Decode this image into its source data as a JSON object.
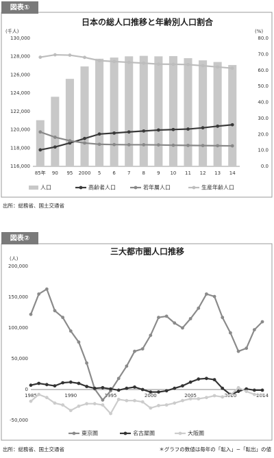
{
  "chart_data": [
    {
      "type": "bar",
      "label": "図表①",
      "title": "日本の総人口推移と年齢別人口割合",
      "y_unit": "(千人)",
      "y2_unit": "(%)",
      "categories": [
        "85年",
        "90",
        "95",
        "2000",
        "5",
        "6",
        "7",
        "8",
        "9",
        "10",
        "11",
        "12",
        "13",
        "14"
      ],
      "series": [
        {
          "name": "人口",
          "type": "bar",
          "color": "#c8c8c8",
          "values": [
            121049,
            123611,
            125570,
            126926,
            127768,
            127901,
            128033,
            128084,
            128032,
            128057,
            127834,
            127593,
            127414,
            127083
          ]
        },
        {
          "name": "高齢者人口",
          "type": "line",
          "axis": "y2",
          "color": "#3a3a3a",
          "values": [
            10.3,
            12.1,
            14.6,
            17.4,
            20.2,
            20.8,
            21.5,
            22.1,
            22.7,
            23.0,
            23.3,
            24.1,
            25.1,
            26.0
          ]
        },
        {
          "name": "若年層人口",
          "type": "line",
          "axis": "y2",
          "color": "#888888",
          "values": [
            21.5,
            18.2,
            16.0,
            14.6,
            13.8,
            13.6,
            13.5,
            13.5,
            13.4,
            13.2,
            13.1,
            13.0,
            12.9,
            12.8
          ]
        },
        {
          "name": "生産年齢人口",
          "type": "line",
          "axis": "y2",
          "color": "#bdbdbd",
          "values": [
            68.2,
            69.7,
            69.5,
            68.1,
            66.1,
            65.5,
            65.0,
            64.5,
            63.9,
            63.8,
            63.6,
            62.9,
            62.1,
            61.3
          ]
        }
      ],
      "ylim": [
        116000,
        130000
      ],
      "yticks": [
        {
          "value": 116000,
          "label": "116,000"
        },
        {
          "value": 118000,
          "label": "118,000"
        },
        {
          "value": 120000,
          "label": "120,000"
        },
        {
          "value": 122000,
          "label": "122,000"
        },
        {
          "value": 124000,
          "label": "124,000"
        },
        {
          "value": 126000,
          "label": "126,000"
        },
        {
          "value": 128000,
          "label": "128,000"
        },
        {
          "value": 130000,
          "label": "130,000"
        }
      ],
      "y2lim": [
        0,
        80
      ],
      "y2ticks": [
        {
          "value": 0,
          "label": "0.0"
        },
        {
          "value": 10,
          "label": "10.0"
        },
        {
          "value": 20,
          "label": "20.0"
        },
        {
          "value": 30,
          "label": "30.0"
        },
        {
          "value": 40,
          "label": "40.0"
        },
        {
          "value": 50,
          "label": "50.0"
        },
        {
          "value": 60,
          "label": "60.0"
        },
        {
          "value": 70,
          "label": "70.0"
        },
        {
          "value": 80,
          "label": "80.0"
        }
      ],
      "grid": false,
      "legend": "bottom",
      "source": "出所：総務省、国土交通省"
    },
    {
      "type": "line",
      "label": "図表②",
      "title": "三大都市圏人口推移",
      "y_unit": "(人)",
      "x": [
        1985,
        1986,
        1987,
        1988,
        1989,
        1990,
        1991,
        1992,
        1993,
        1994,
        1995,
        1996,
        1997,
        1998,
        1999,
        2000,
        2001,
        2002,
        2003,
        2004,
        2005,
        2006,
        2007,
        2008,
        2009,
        2010,
        2011,
        2012,
        2013,
        2014
      ],
      "series": [
        {
          "name": "東京圏",
          "color": "#8a8a8a",
          "values": [
            122000,
            155000,
            163000,
            128000,
            117000,
            95000,
            77000,
            43000,
            1000,
            -17000,
            -2000,
            18000,
            38000,
            62000,
            66000,
            88000,
            117000,
            119000,
            108000,
            100000,
            115000,
            132000,
            155000,
            151000,
            117000,
            92000,
            62000,
            67000,
            97000,
            110000
          ]
        },
        {
          "name": "名古屋圏",
          "color": "#333333",
          "values": [
            7000,
            10000,
            8000,
            6000,
            11000,
            12000,
            10000,
            5000,
            2000,
            3000,
            1000,
            -1000,
            2000,
            4000,
            0,
            -4000,
            -4000,
            -2000,
            2000,
            6000,
            12000,
            17000,
            18000,
            16000,
            2000,
            -8000,
            -3000,
            1000,
            -1000,
            -1000
          ]
        },
        {
          "name": "大阪圏",
          "color": "#cccccc",
          "values": [
            -19000,
            -8000,
            -13000,
            -22000,
            -25000,
            -34000,
            -27000,
            -23000,
            -23000,
            -25000,
            -39000,
            -16000,
            -18000,
            -18000,
            -20000,
            -30000,
            -26000,
            -25000,
            -22000,
            -18000,
            -15000,
            -15000,
            -13000,
            -10000,
            -12000,
            -9000,
            3000,
            -3000,
            -8000,
            -9000
          ]
        }
      ],
      "xlim": [
        1985,
        2014
      ],
      "xticks": [
        1985,
        1990,
        1995,
        2000,
        2005,
        2010,
        2014
      ],
      "ylim": [
        -50000,
        200000
      ],
      "yticks": [
        {
          "value": -50000,
          "label": "-50,000"
        },
        {
          "value": 0,
          "label": "0"
        },
        {
          "value": 50000,
          "label": "50,000"
        },
        {
          "value": 100000,
          "label": "100,000"
        },
        {
          "value": 150000,
          "label": "150,000"
        },
        {
          "value": 200000,
          "label": "200,000"
        }
      ],
      "grid": false,
      "legend": "bottom",
      "source": "出所：総務省、国土交通省",
      "note": "＊グラフの数値は毎年の「転入」−「転出」の値"
    }
  ]
}
